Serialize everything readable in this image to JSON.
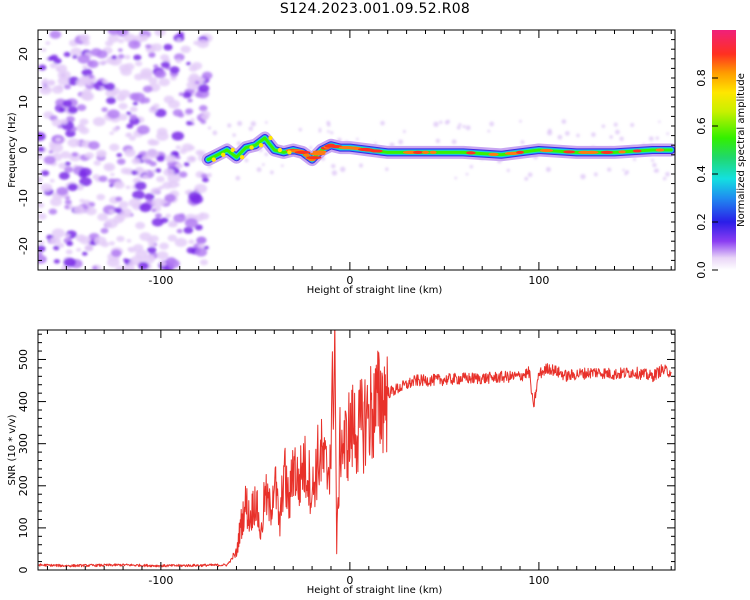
{
  "title": "S124.2023.001.09.52.R08",
  "chart_data": [
    {
      "type": "heatmap",
      "xlabel": "Height of straight line (km)",
      "ylabel": "Frequency (Hz)",
      "xlim": [
        -165,
        172
      ],
      "ylim": [
        -25,
        25
      ],
      "xticks": [
        -100,
        0,
        100
      ],
      "yticks": [
        -20,
        -10,
        0,
        10,
        20
      ],
      "colorbar": {
        "label": "Normalized spectral amplitude",
        "range": [
          0,
          1
        ],
        "ticks": [
          "0.0",
          "0.2",
          "0.4",
          "0.6",
          "0.8"
        ]
      },
      "ridge": {
        "x": [
          -75,
          -70,
          -65,
          -60,
          -55,
          -50,
          -45,
          -40,
          -35,
          -30,
          -25,
          -20,
          -15,
          -10,
          -5,
          0,
          10,
          20,
          40,
          60,
          80,
          90,
          100,
          120,
          140,
          160,
          170
        ],
        "y": [
          -2.0,
          -1.0,
          0.0,
          -1.5,
          0.5,
          1.0,
          2.5,
          0.0,
          -0.5,
          0.0,
          -0.5,
          -2.0,
          0.0,
          1.0,
          0.5,
          0.5,
          0.0,
          -0.5,
          -0.5,
          -0.5,
          -1.0,
          -0.5,
          0.0,
          -0.5,
          -0.5,
          0.0,
          0.0
        ]
      },
      "noise_region_x": [
        -165,
        -75
      ]
    },
    {
      "type": "line",
      "xlabel": "Height of straight line (km)",
      "ylabel": "SNR (10 * v/v)",
      "xlim": [
        -165,
        172
      ],
      "ylim": [
        0,
        570
      ],
      "xticks": [
        -100,
        0,
        100
      ],
      "yticks": [
        0,
        100,
        200,
        300,
        400,
        500
      ],
      "color": "#e8312a",
      "series": [
        {
          "x": [
            -165,
            -150,
            -135,
            -120,
            -100,
            -80,
            -65,
            -60,
            -58,
            -55,
            -53,
            -50,
            -47,
            -45,
            -42,
            -40,
            -37,
            -35,
            -32,
            -30,
            -27,
            -25,
            -22,
            -20,
            -17,
            -15,
            -12,
            -10,
            -8,
            -7,
            -5,
            -3,
            0,
            3,
            5,
            8,
            10,
            13,
            15,
            18,
            20,
            25,
            30,
            35,
            40,
            50,
            60,
            70,
            80,
            90,
            95,
            97,
            100,
            105,
            110,
            115,
            120,
            130,
            140,
            150,
            160,
            165,
            170
          ],
          "y": [
            12,
            10,
            11,
            12,
            10,
            11,
            12,
            40,
            100,
            160,
            120,
            170,
            80,
            180,
            140,
            220,
            100,
            240,
            150,
            260,
            200,
            250,
            230,
            180,
            260,
            270,
            230,
            290,
            570,
            50,
            320,
            290,
            330,
            340,
            330,
            360,
            370,
            380,
            395,
            410,
            420,
            430,
            440,
            450,
            450,
            452,
            455,
            455,
            458,
            460,
            470,
            385,
            465,
            480,
            470,
            460,
            465,
            470,
            465,
            470,
            460,
            475,
            470
          ]
        }
      ]
    }
  ]
}
